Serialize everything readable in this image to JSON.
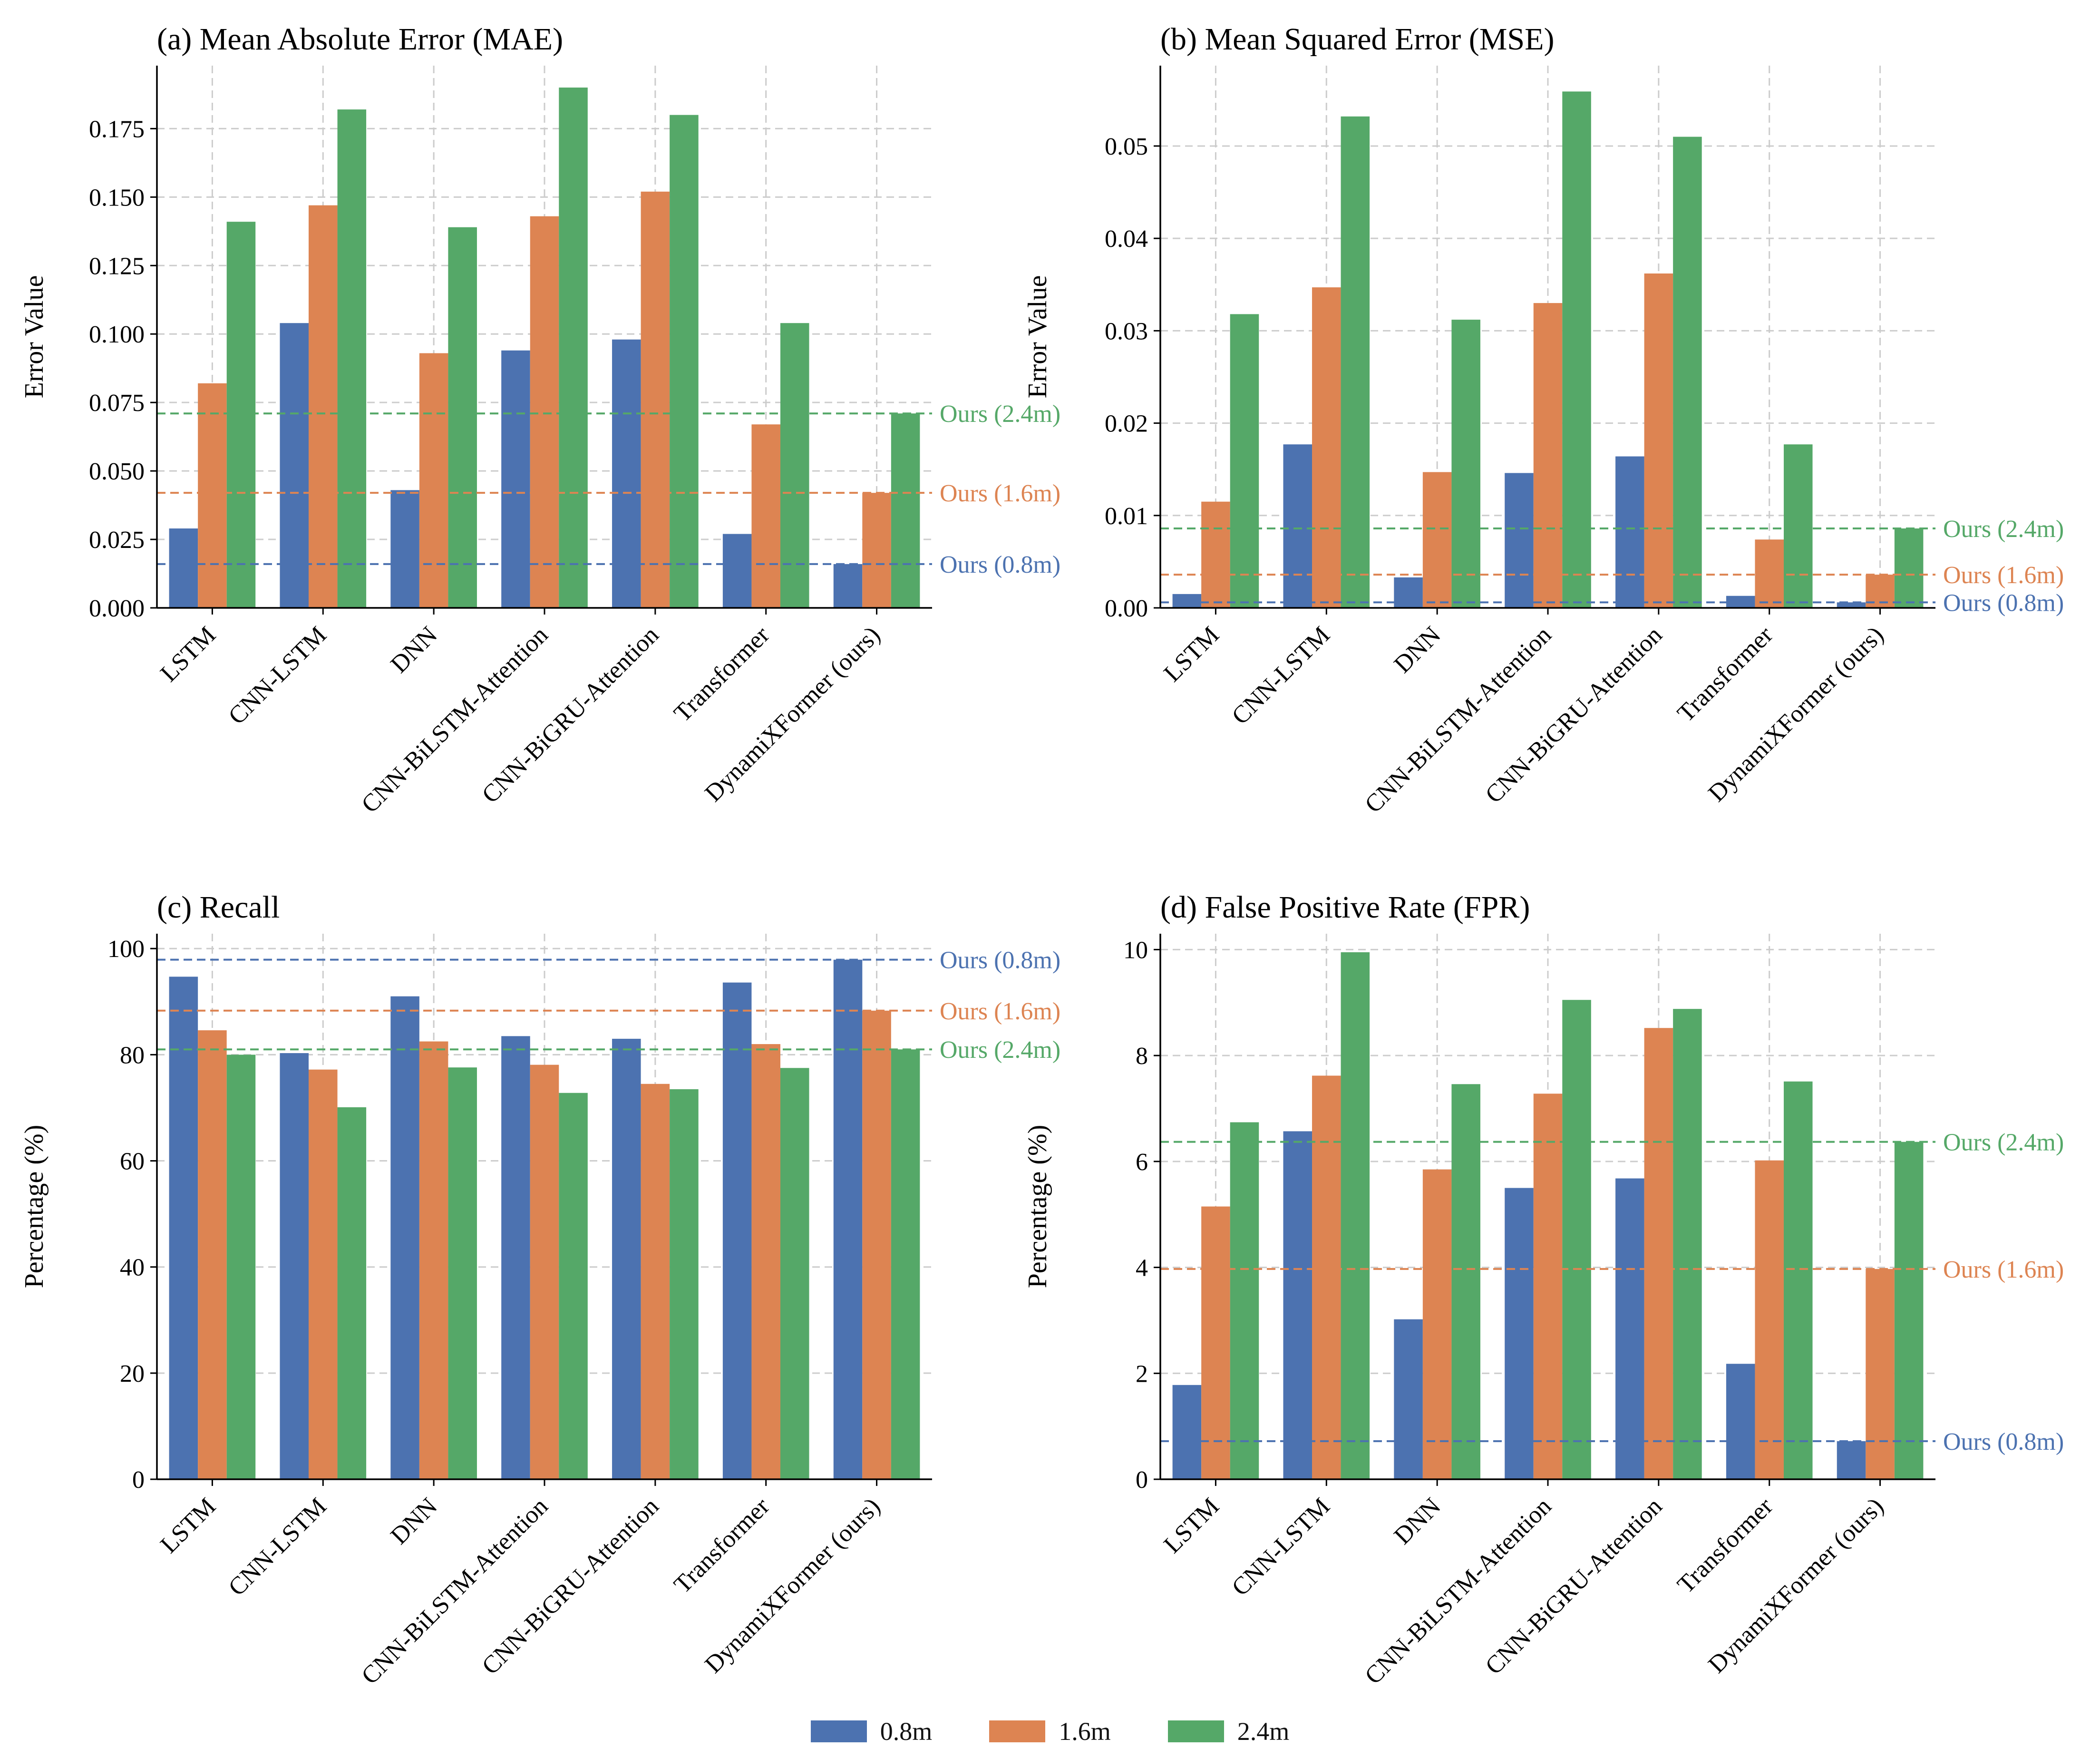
{
  "colors": {
    "s08": "#4c72b0",
    "s16": "#dd8452",
    "s24": "#55a868",
    "grid": "#cccccc",
    "axis": "#000000"
  },
  "legend": {
    "items": [
      {
        "label": "0.8m",
        "color": "#4c72b0"
      },
      {
        "label": "1.6m",
        "color": "#dd8452"
      },
      {
        "label": "2.4m",
        "color": "#55a868"
      }
    ]
  },
  "chart_data": [
    {
      "type": "bar",
      "title": "(a) Mean Absolute Error (MAE)",
      "xlabel": "",
      "ylabel": "Error Value",
      "categories": [
        "LSTM",
        "CNN-LSTM",
        "DNN",
        "CNN-BiLSTM-Attention",
        "CNN-BiGRU-Attention",
        "Transformer",
        "DynamiXFormer (ours)"
      ],
      "series": [
        {
          "name": "0.8m",
          "values": [
            0.029,
            0.104,
            0.043,
            0.094,
            0.098,
            0.027,
            0.016
          ]
        },
        {
          "name": "1.6m",
          "values": [
            0.082,
            0.147,
            0.093,
            0.143,
            0.152,
            0.067,
            0.042
          ]
        },
        {
          "name": "2.4m",
          "values": [
            0.141,
            0.182,
            0.139,
            0.19,
            0.18,
            0.104,
            0.071
          ]
        }
      ],
      "ylim": [
        0,
        0.198
      ],
      "yticks": [
        0.0,
        0.025,
        0.05,
        0.075,
        0.1,
        0.125,
        0.15,
        0.175
      ],
      "ytick_labels": [
        "0.000",
        "0.025",
        "0.050",
        "0.075",
        "0.100",
        "0.125",
        "0.150",
        "0.175"
      ],
      "grid": true,
      "reference_lines": [
        {
          "label": "Ours (0.8m)",
          "value": 0.016,
          "series": "0.8m"
        },
        {
          "label": "Ours (1.6m)",
          "value": 0.042,
          "series": "1.6m"
        },
        {
          "label": "Ours (2.4m)",
          "value": 0.071,
          "series": "2.4m"
        }
      ]
    },
    {
      "type": "bar",
      "title": "(b) Mean Squared Error (MSE)",
      "xlabel": "",
      "ylabel": "Error Value",
      "categories": [
        "LSTM",
        "CNN-LSTM",
        "DNN",
        "CNN-BiLSTM-Attention",
        "CNN-BiGRU-Attention",
        "Transformer",
        "DynamiXFormer (ours)"
      ],
      "series": [
        {
          "name": "0.8m",
          "values": [
            0.0015,
            0.0177,
            0.0033,
            0.0146,
            0.0164,
            0.0013,
            0.0006
          ]
        },
        {
          "name": "1.6m",
          "values": [
            0.0115,
            0.0347,
            0.0147,
            0.033,
            0.0362,
            0.0074,
            0.0036
          ]
        },
        {
          "name": "2.4m",
          "values": [
            0.0318,
            0.0532,
            0.0312,
            0.0559,
            0.051,
            0.0177,
            0.0086
          ]
        }
      ],
      "ylim": [
        0,
        0.0587
      ],
      "yticks": [
        0.0,
        0.01,
        0.02,
        0.03,
        0.04,
        0.05
      ],
      "ytick_labels": [
        "0.00",
        "0.01",
        "0.02",
        "0.03",
        "0.04",
        "0.05"
      ],
      "grid": true,
      "reference_lines": [
        {
          "label": "Ours (0.8m)",
          "value": 0.0006,
          "series": "0.8m"
        },
        {
          "label": "Ours (1.6m)",
          "value": 0.0036,
          "series": "1.6m"
        },
        {
          "label": "Ours (2.4m)",
          "value": 0.0086,
          "series": "2.4m"
        }
      ]
    },
    {
      "type": "bar",
      "title": "(c) Recall",
      "xlabel": "",
      "ylabel": "Percentage (%)",
      "categories": [
        "LSTM",
        "CNN-LSTM",
        "DNN",
        "CNN-BiLSTM-Attention",
        "CNN-BiGRU-Attention",
        "Transformer",
        "DynamiXFormer (ours)"
      ],
      "series": [
        {
          "name": "0.8m",
          "values": [
            94.7,
            80.3,
            91.0,
            83.5,
            83.0,
            93.6,
            97.9
          ]
        },
        {
          "name": "1.6m",
          "values": [
            84.6,
            77.2,
            82.5,
            78.1,
            74.5,
            82.0,
            88.3
          ]
        },
        {
          "name": "2.4m",
          "values": [
            80.0,
            70.1,
            77.6,
            72.8,
            73.5,
            77.5,
            81.0
          ]
        }
      ],
      "ylim": [
        0,
        102.8
      ],
      "yticks": [
        0,
        20,
        40,
        60,
        80,
        100
      ],
      "ytick_labels": [
        "0",
        "20",
        "40",
        "60",
        "80",
        "100"
      ],
      "grid": true,
      "reference_lines": [
        {
          "label": "Ours (0.8m)",
          "value": 97.9,
          "series": "0.8m"
        },
        {
          "label": "Ours (1.6m)",
          "value": 88.3,
          "series": "1.6m"
        },
        {
          "label": "Ours (2.4m)",
          "value": 81.0,
          "series": "2.4m"
        }
      ]
    },
    {
      "type": "bar",
      "title": "(d) False Positive Rate (FPR)",
      "xlabel": "",
      "ylabel": "Percentage (%)",
      "categories": [
        "LSTM",
        "CNN-LSTM",
        "DNN",
        "CNN-BiLSTM-Attention",
        "CNN-BiGRU-Attention",
        "Transformer",
        "DynamiXFormer (ours)"
      ],
      "series": [
        {
          "name": "0.8m",
          "values": [
            1.78,
            6.57,
            3.02,
            5.5,
            5.68,
            2.18,
            0.72
          ]
        },
        {
          "name": "1.6m",
          "values": [
            5.15,
            7.62,
            5.85,
            7.28,
            8.52,
            6.02,
            3.97
          ]
        },
        {
          "name": "2.4m",
          "values": [
            6.74,
            9.95,
            7.46,
            9.05,
            8.88,
            7.51,
            6.37
          ]
        }
      ],
      "ylim": [
        0,
        10.3
      ],
      "yticks": [
        0,
        2,
        4,
        6,
        8,
        10
      ],
      "ytick_labels": [
        "0",
        "2",
        "4",
        "6",
        "8",
        "10"
      ],
      "grid": true,
      "reference_lines": [
        {
          "label": "Ours (0.8m)",
          "value": 0.72,
          "series": "0.8m"
        },
        {
          "label": "Ours (1.6m)",
          "value": 3.97,
          "series": "1.6m"
        },
        {
          "label": "Ours (2.4m)",
          "value": 6.37,
          "series": "2.4m"
        }
      ]
    }
  ]
}
